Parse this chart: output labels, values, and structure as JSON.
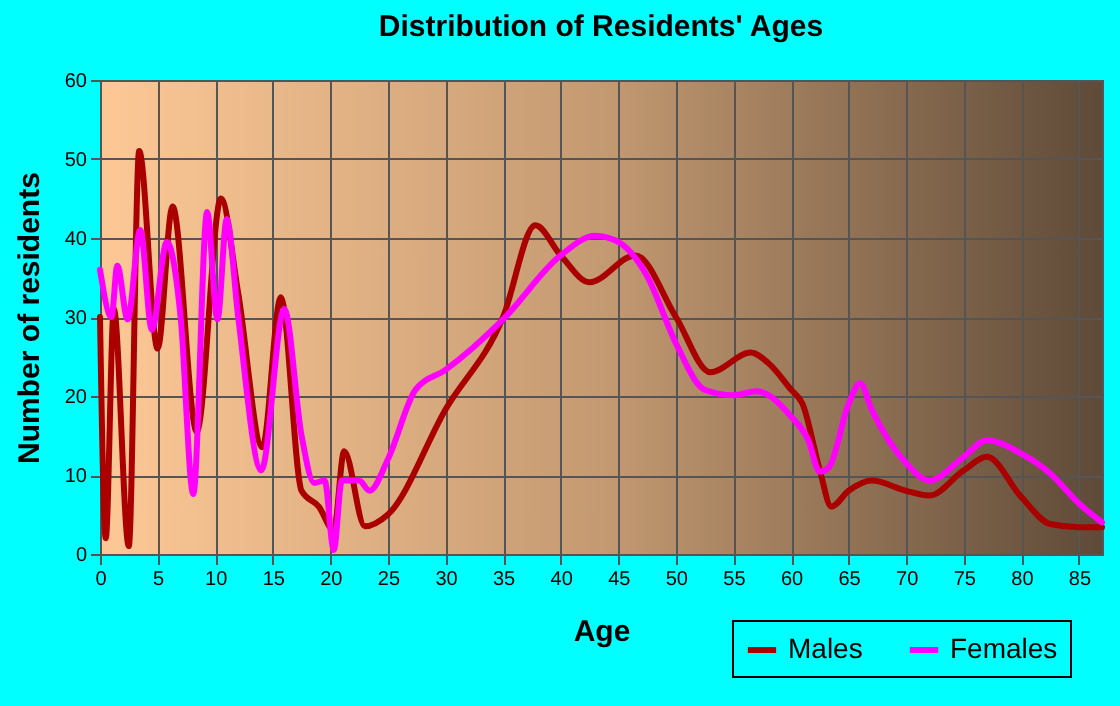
{
  "chart_data": {
    "type": "line",
    "title": "Distribution of Residents' Ages",
    "xlabel": "Age",
    "ylabel": "Number of residents",
    "xlim": [
      0,
      87
    ],
    "xticks": [
      0,
      5,
      10,
      15,
      20,
      25,
      30,
      35,
      40,
      45,
      50,
      55,
      60,
      65,
      70,
      75,
      80,
      85
    ],
    "ylim": [
      0,
      60
    ],
    "yticks": [
      0,
      10,
      20,
      30,
      40,
      50,
      60
    ],
    "grid": true,
    "legend": "bottom right",
    "series": [
      {
        "name": "Males",
        "color": "#aa0000",
        "x": [
          0,
          0.5,
          1.2,
          2.5,
          3.4,
          5,
          6.3,
          8.4,
          10.5,
          12,
          14.1,
          15.7,
          17.5,
          19,
          20.3,
          21.2,
          23,
          25,
          30,
          35,
          37.8,
          40,
          42.5,
          46.5,
          50,
          53,
          56.5,
          58,
          60,
          61,
          62.5,
          63.5,
          65,
          67,
          70,
          72,
          75,
          77,
          80,
          82.5,
          85,
          87
        ],
        "values": [
          30,
          2,
          31,
          1,
          51,
          26,
          44,
          15.5,
          45,
          33,
          13.5,
          32.5,
          8,
          6,
          3,
          13,
          3.5,
          5,
          18.3,
          30,
          41.6,
          37.8,
          34.4,
          37.8,
          30,
          23,
          25.5,
          24.2,
          20.8,
          19,
          10.6,
          6,
          8,
          9.3,
          8,
          7.4,
          10.6,
          12.3,
          7.2,
          3.8,
          3.4,
          3.4
        ]
      },
      {
        "name": "Females",
        "color": "#ff00ff",
        "x": [
          0,
          1,
          1.5,
          2.4,
          3.5,
          4.5,
          5.8,
          7,
          8.1,
          9.3,
          10.2,
          11,
          12,
          14,
          16,
          17.5,
          18.6,
          19.5,
          20.3,
          21,
          22.5,
          23.4,
          25,
          27.4,
          30,
          35,
          40,
          43,
          45,
          47.5,
          50,
          52.5,
          55,
          57,
          60,
          61.5,
          62.5,
          63.3,
          65,
          66,
          67,
          70,
          72,
          75,
          77,
          80,
          82.5,
          85,
          87
        ],
        "values": [
          36,
          30,
          36.5,
          29.7,
          41,
          28.4,
          39.5,
          30,
          7.6,
          43.3,
          29.7,
          42.4,
          30,
          10.6,
          31,
          15,
          9,
          9.3,
          0.5,
          9.3,
          9.3,
          8,
          12,
          20.8,
          23.3,
          29.7,
          37.8,
          40.3,
          39.5,
          35.2,
          26.7,
          20.8,
          20.1,
          20.6,
          17.4,
          14.4,
          10.4,
          11,
          19,
          21.6,
          18.3,
          11.5,
          9.3,
          12.3,
          14.4,
          12.7,
          10.2,
          6.4,
          4
        ]
      }
    ]
  }
}
